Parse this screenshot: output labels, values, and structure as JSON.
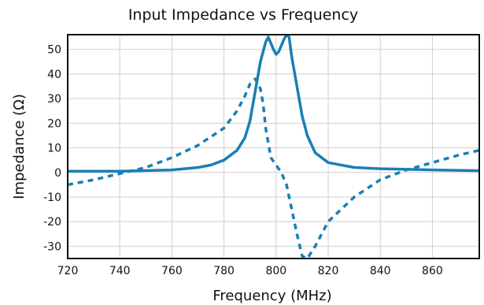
{
  "chart_data": {
    "type": "line",
    "title": "Input Impedance vs Frequency",
    "xlabel": "Frequency (MHz)",
    "ylabel": "Impedance (Ω)",
    "xlim": [
      720,
      878
    ],
    "ylim": [
      -35,
      56
    ],
    "xticks": [
      720,
      740,
      760,
      780,
      800,
      820,
      840,
      860
    ],
    "yticks": [
      -30,
      -20,
      -10,
      0,
      10,
      20,
      30,
      40,
      50
    ],
    "grid": true,
    "legend": "none",
    "line_color": "#1a7fb5",
    "series": [
      {
        "style": "solid",
        "x": [
          720,
          740,
          760,
          770,
          775,
          780,
          785,
          788,
          790,
          792,
          794,
          796,
          797,
          799,
          800,
          801,
          803,
          804,
          805,
          806,
          808,
          810,
          812,
          815,
          820,
          830,
          840,
          860,
          878
        ],
        "y": [
          0.5,
          0.5,
          1,
          2,
          3,
          5,
          9,
          14,
          21,
          33,
          45,
          53,
          55,
          50,
          48,
          49,
          54,
          56,
          55,
          47,
          35,
          23,
          15,
          8,
          4,
          2,
          1.5,
          1,
          0.7
        ]
      },
      {
        "style": "dashed",
        "x": [
          720,
          730,
          740,
          750,
          760,
          770,
          780,
          785,
          788,
          790,
          792,
          794,
          795,
          796,
          798,
          800,
          802,
          804,
          806,
          808,
          810,
          812,
          815,
          820,
          830,
          840,
          850,
          860,
          870,
          878
        ],
        "y": [
          -5,
          -3,
          -0.5,
          2,
          6,
          11,
          18,
          25,
          31,
          36,
          38,
          34,
          28,
          18,
          6,
          3,
          0,
          -5,
          -15,
          -25,
          -34,
          -35,
          -30,
          -20,
          -10,
          -3,
          1,
          4,
          7,
          9
        ]
      }
    ]
  }
}
